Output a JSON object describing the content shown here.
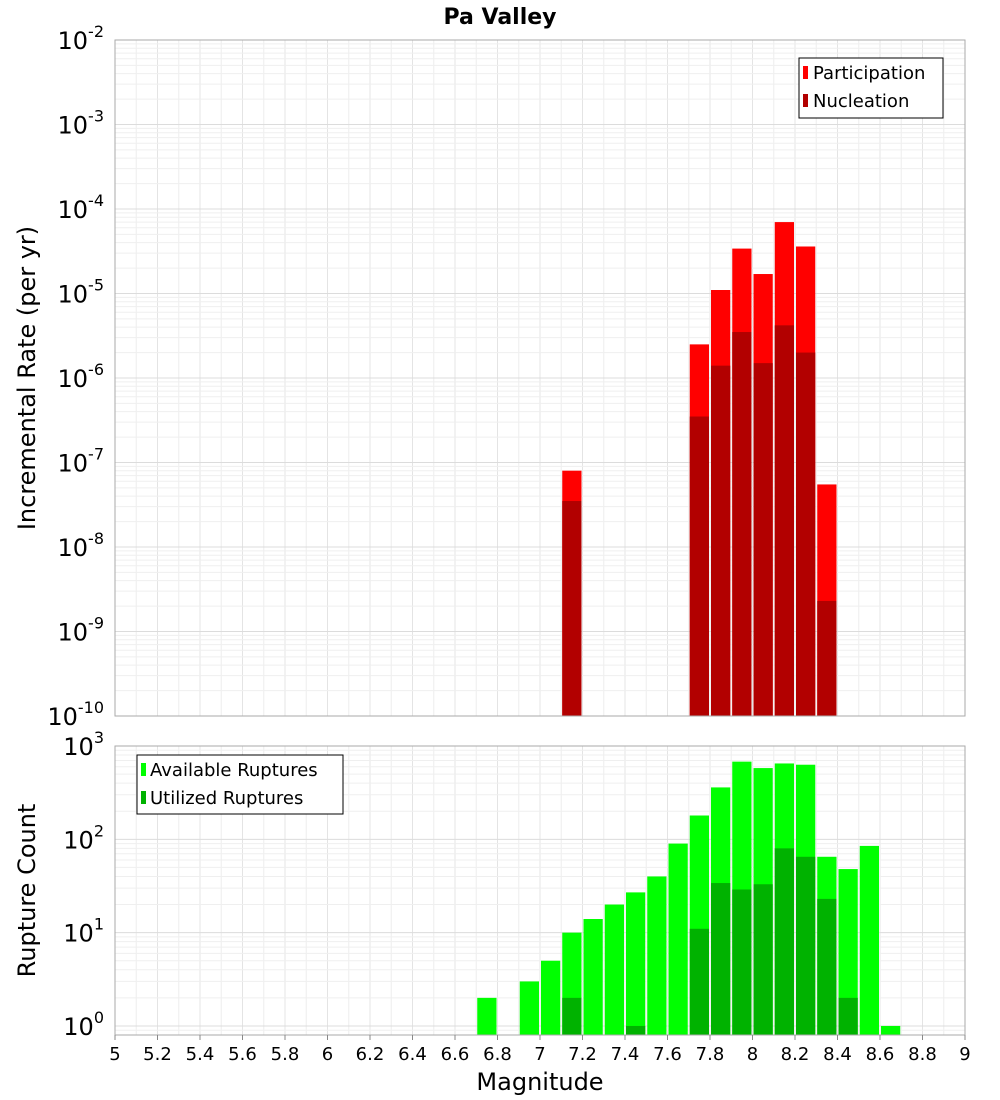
{
  "chart_data": [
    {
      "type": "bar",
      "title": "Pa Valley",
      "xlabel": "",
      "ylabel": "Incremental Rate (per yr)",
      "yscale": "log",
      "ylim": [
        1e-10,
        0.01
      ],
      "xlim": [
        5,
        9
      ],
      "bin_width": 0.1,
      "overlay": true,
      "grid": true,
      "legend": "top-right",
      "y_ticks": [
        {
          "base": "10",
          "exp": "-10",
          "value": 1e-10
        },
        {
          "base": "10",
          "exp": "-9",
          "value": 1e-09
        },
        {
          "base": "10",
          "exp": "-8",
          "value": 1e-08
        },
        {
          "base": "10",
          "exp": "-7",
          "value": 1e-07
        },
        {
          "base": "10",
          "exp": "-6",
          "value": 1e-06
        },
        {
          "base": "10",
          "exp": "-5",
          "value": 1e-05
        },
        {
          "base": "10",
          "exp": "-4",
          "value": 0.0001
        },
        {
          "base": "10",
          "exp": "-3",
          "value": 0.001
        },
        {
          "base": "10",
          "exp": "-2",
          "value": 0.01
        }
      ],
      "series": [
        {
          "name": "Participation",
          "color": "#ff0000",
          "points": [
            {
              "x": 7.15,
              "y": 8e-08
            },
            {
              "x": 7.75,
              "y": 2.5e-06
            },
            {
              "x": 7.85,
              "y": 1.1e-05
            },
            {
              "x": 7.95,
              "y": 3.4e-05
            },
            {
              "x": 8.05,
              "y": 1.7e-05
            },
            {
              "x": 8.15,
              "y": 7e-05
            },
            {
              "x": 8.25,
              "y": 3.6e-05
            },
            {
              "x": 8.35,
              "y": 5.5e-08
            }
          ]
        },
        {
          "name": "Nucleation",
          "color": "#b20000",
          "points": [
            {
              "x": 7.15,
              "y": 3.5e-08
            },
            {
              "x": 7.75,
              "y": 3.5e-07
            },
            {
              "x": 7.85,
              "y": 1.4e-06
            },
            {
              "x": 7.95,
              "y": 3.5e-06
            },
            {
              "x": 8.05,
              "y": 1.5e-06
            },
            {
              "x": 8.15,
              "y": 4.2e-06
            },
            {
              "x": 8.25,
              "y": 2e-06
            },
            {
              "x": 8.35,
              "y": 2.3e-09
            }
          ]
        }
      ]
    },
    {
      "type": "bar",
      "title": "",
      "xlabel": "Magnitude",
      "ylabel": "Rupture Count",
      "yscale": "log",
      "ylim": [
        0.8,
        1000
      ],
      "xlim": [
        5,
        9
      ],
      "bin_width": 0.1,
      "overlay": true,
      "grid": true,
      "legend": "top-left",
      "x_ticks": [
        "5",
        "5.2",
        "5.4",
        "5.6",
        "5.8",
        "6",
        "6.2",
        "6.4",
        "6.6",
        "6.8",
        "7",
        "7.2",
        "7.4",
        "7.6",
        "7.8",
        "8",
        "8.2",
        "8.4",
        "8.6",
        "8.8",
        "9"
      ],
      "y_ticks": [
        {
          "base": "10",
          "exp": "0",
          "value": 1
        },
        {
          "base": "10",
          "exp": "1",
          "value": 10
        },
        {
          "base": "10",
          "exp": "2",
          "value": 100
        },
        {
          "base": "10",
          "exp": "3",
          "value": 1000
        }
      ],
      "series": [
        {
          "name": "Available Ruptures",
          "color": "#00ff00",
          "points": [
            {
              "x": 6.75,
              "y": 2
            },
            {
              "x": 6.95,
              "y": 3
            },
            {
              "x": 7.05,
              "y": 5
            },
            {
              "x": 7.15,
              "y": 10
            },
            {
              "x": 7.25,
              "y": 14
            },
            {
              "x": 7.35,
              "y": 20
            },
            {
              "x": 7.45,
              "y": 27
            },
            {
              "x": 7.55,
              "y": 40
            },
            {
              "x": 7.65,
              "y": 90
            },
            {
              "x": 7.75,
              "y": 180
            },
            {
              "x": 7.85,
              "y": 360
            },
            {
              "x": 7.95,
              "y": 680
            },
            {
              "x": 8.05,
              "y": 580
            },
            {
              "x": 8.15,
              "y": 650
            },
            {
              "x": 8.25,
              "y": 630
            },
            {
              "x": 8.35,
              "y": 65
            },
            {
              "x": 8.45,
              "y": 48
            },
            {
              "x": 8.55,
              "y": 85
            },
            {
              "x": 8.65,
              "y": 1
            }
          ]
        },
        {
          "name": "Utilized Ruptures",
          "color": "#00b200",
          "points": [
            {
              "x": 7.15,
              "y": 2
            },
            {
              "x": 7.45,
              "y": 1
            },
            {
              "x": 7.75,
              "y": 11
            },
            {
              "x": 7.85,
              "y": 34
            },
            {
              "x": 7.95,
              "y": 29
            },
            {
              "x": 8.05,
              "y": 33
            },
            {
              "x": 8.15,
              "y": 80
            },
            {
              "x": 8.25,
              "y": 65
            },
            {
              "x": 8.35,
              "y": 23
            },
            {
              "x": 8.45,
              "y": 2
            }
          ]
        }
      ]
    }
  ]
}
